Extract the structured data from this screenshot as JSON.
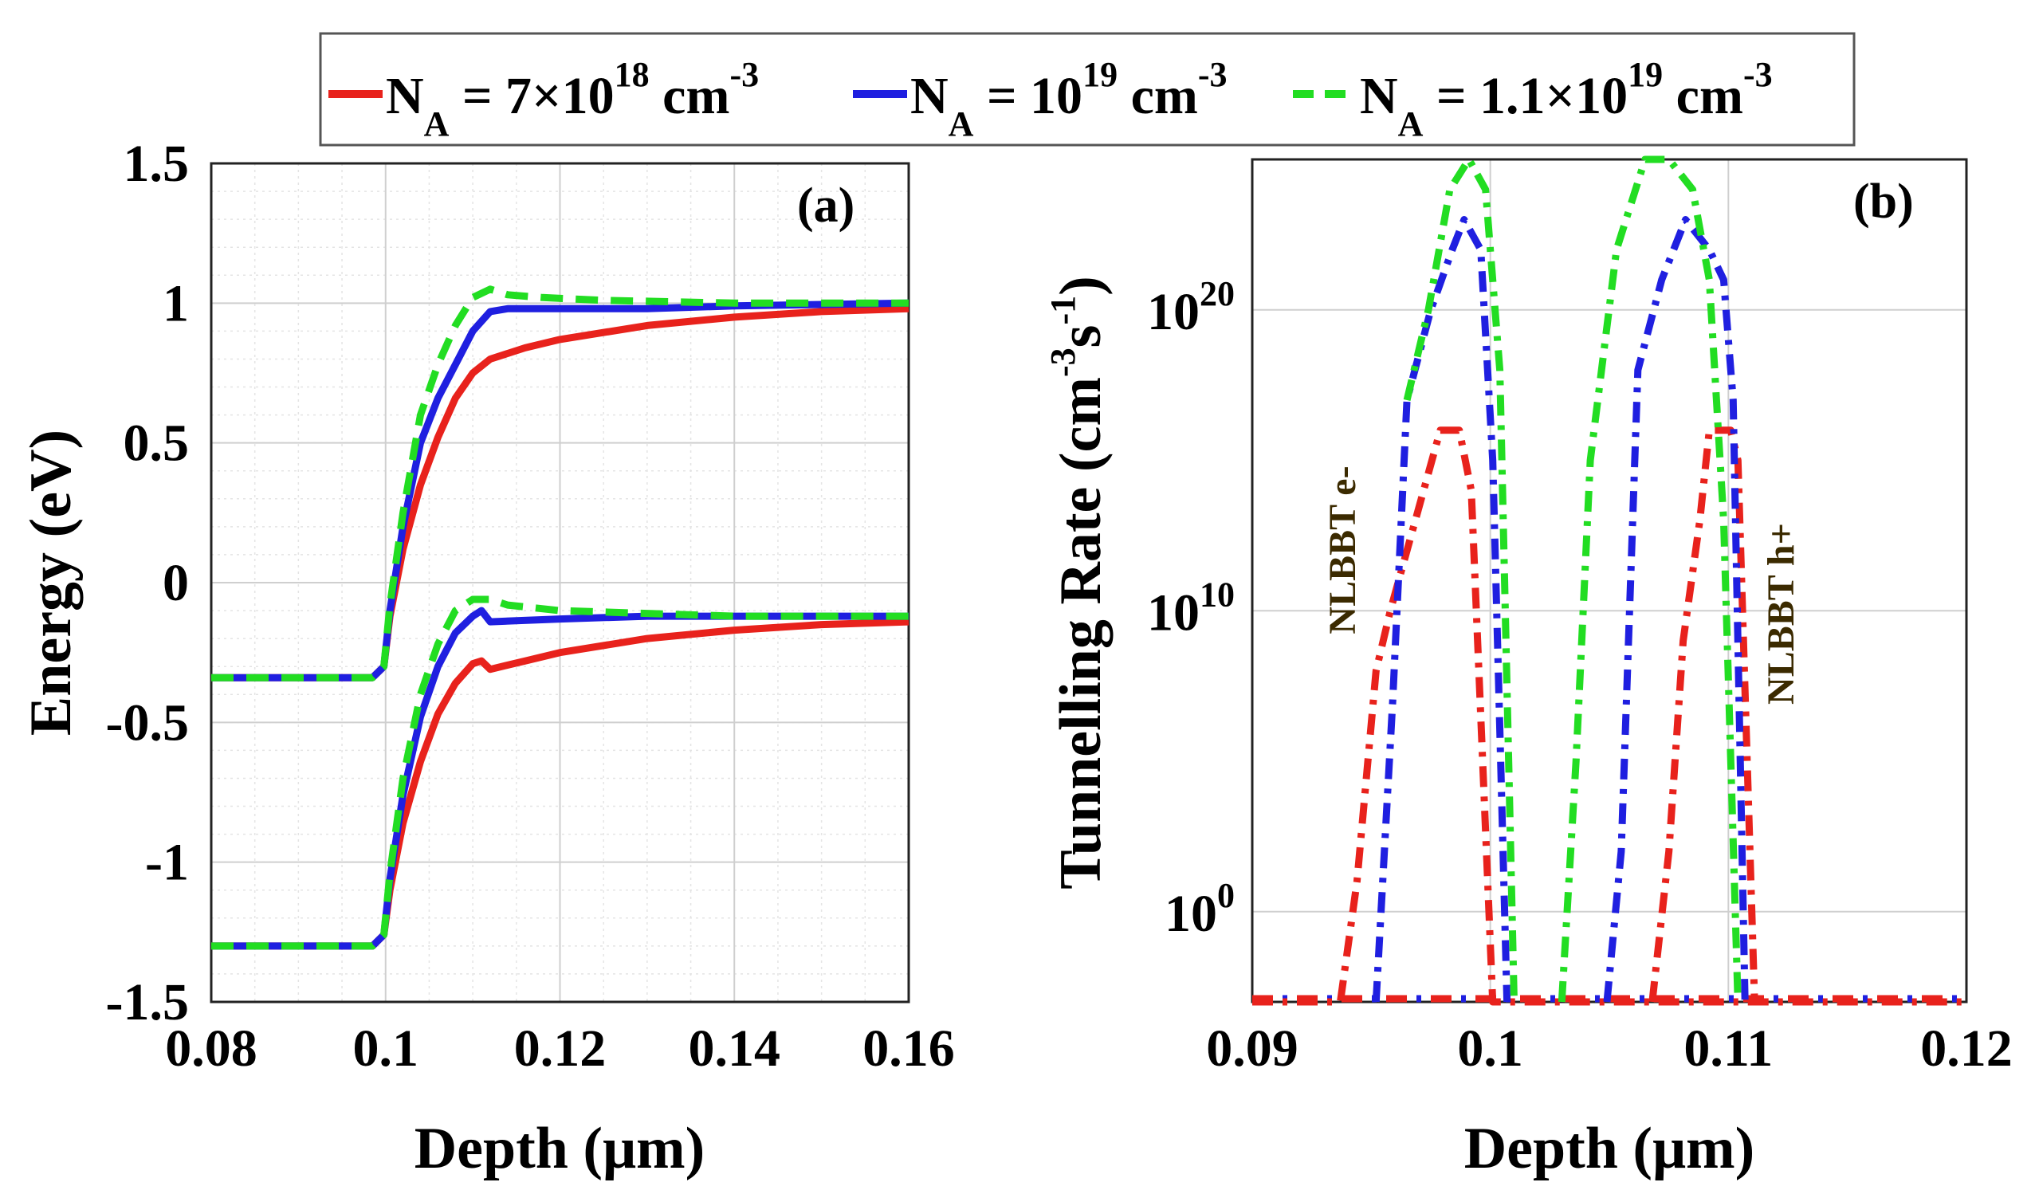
{
  "legend": {
    "entries": [
      {
        "name": "na-7e18",
        "color": "#e8221c",
        "dash": "solid",
        "prefix": "N",
        "sub": "A",
        "mid": " = 7×10",
        "exp": "18",
        "unit": " cm",
        "unit_exp": "-3"
      },
      {
        "name": "na-1e19",
        "color": "#1f1fe0",
        "dash": "solid",
        "prefix": "N",
        "sub": "A",
        "mid": " = 10",
        "exp": "19",
        "unit": " cm",
        "unit_exp": "-3"
      },
      {
        "name": "na-1.1e19",
        "color": "#22dd22",
        "dash": "dashed",
        "prefix": "N",
        "sub": "A",
        "mid": " = 1.1×10",
        "exp": "19",
        "unit": " cm",
        "unit_exp": "-3"
      }
    ]
  },
  "chart_data": [
    {
      "type": "line",
      "panel": "(a)",
      "xlabel": "Depth (μm)",
      "ylabel": "Energy (eV)",
      "xlim": [
        0.08,
        0.16
      ],
      "ylim": [
        -1.5,
        1.5
      ],
      "xticks": [
        0.08,
        0.1,
        0.12,
        0.14,
        0.16
      ],
      "xtick_labels": [
        "0.08",
        "0.1",
        "0.12",
        "0.14",
        "0.16"
      ],
      "yticks": [
        -1.5,
        -1,
        -0.5,
        0,
        0.5,
        1,
        1.5
      ],
      "ytick_labels": [
        "-1.5",
        "-1",
        "-0.5",
        "0",
        "0.5",
        "1",
        "1.5"
      ],
      "grid": true,
      "series": [
        {
          "name": "NA = 7e18 conduction band",
          "color": "#e8221c",
          "dash": "solid",
          "x": [
            0.08,
            0.0985,
            0.0998,
            0.1005,
            0.102,
            0.104,
            0.106,
            0.108,
            0.11,
            0.112,
            0.116,
            0.12,
            0.13,
            0.14,
            0.15,
            0.16
          ],
          "y": [
            -0.34,
            -0.34,
            -0.3,
            -0.12,
            0.12,
            0.35,
            0.52,
            0.66,
            0.75,
            0.8,
            0.84,
            0.87,
            0.92,
            0.95,
            0.97,
            0.98
          ]
        },
        {
          "name": "NA = 1e19 conduction band",
          "color": "#1f1fe0",
          "dash": "solid",
          "x": [
            0.08,
            0.0985,
            0.0998,
            0.1005,
            0.102,
            0.104,
            0.106,
            0.108,
            0.11,
            0.112,
            0.114,
            0.12,
            0.13,
            0.14,
            0.16
          ],
          "y": [
            -0.34,
            -0.34,
            -0.3,
            -0.1,
            0.2,
            0.5,
            0.66,
            0.78,
            0.9,
            0.97,
            0.98,
            0.98,
            0.98,
            0.99,
            1.0
          ]
        },
        {
          "name": "NA = 1.1e19 conduction band",
          "color": "#22dd22",
          "dash": "dashed",
          "x": [
            0.08,
            0.0985,
            0.0998,
            0.1005,
            0.102,
            0.104,
            0.106,
            0.108,
            0.11,
            0.112,
            0.114,
            0.118,
            0.125,
            0.14,
            0.16
          ],
          "y": [
            -0.34,
            -0.34,
            -0.3,
            -0.08,
            0.25,
            0.6,
            0.78,
            0.92,
            1.02,
            1.05,
            1.03,
            1.02,
            1.01,
            1.0,
            1.0
          ]
        },
        {
          "name": "NA = 7e18 valence band",
          "color": "#e8221c",
          "dash": "solid",
          "x": [
            0.08,
            0.0985,
            0.0998,
            0.1005,
            0.102,
            0.104,
            0.106,
            0.108,
            0.11,
            0.111,
            0.112,
            0.116,
            0.12,
            0.13,
            0.14,
            0.15,
            0.16
          ],
          "y": [
            -1.3,
            -1.3,
            -1.26,
            -1.1,
            -0.86,
            -0.64,
            -0.47,
            -0.36,
            -0.29,
            -0.28,
            -0.31,
            -0.28,
            -0.25,
            -0.2,
            -0.17,
            -0.15,
            -0.14
          ]
        },
        {
          "name": "NA = 1e19 valence band",
          "color": "#1f1fe0",
          "dash": "solid",
          "x": [
            0.08,
            0.0985,
            0.0998,
            0.1005,
            0.102,
            0.104,
            0.106,
            0.108,
            0.11,
            0.111,
            0.112,
            0.12,
            0.13,
            0.14,
            0.16
          ],
          "y": [
            -1.3,
            -1.3,
            -1.26,
            -1.06,
            -0.76,
            -0.48,
            -0.3,
            -0.18,
            -0.12,
            -0.1,
            -0.14,
            -0.13,
            -0.12,
            -0.12,
            -0.12
          ]
        },
        {
          "name": "NA = 1.1e19 valence band",
          "color": "#22dd22",
          "dash": "dashed",
          "x": [
            0.08,
            0.0985,
            0.0998,
            0.1005,
            0.102,
            0.104,
            0.106,
            0.108,
            0.11,
            0.112,
            0.114,
            0.12,
            0.13,
            0.14,
            0.16
          ],
          "y": [
            -1.3,
            -1.3,
            -1.26,
            -1.04,
            -0.7,
            -0.4,
            -0.22,
            -0.1,
            -0.06,
            -0.06,
            -0.08,
            -0.1,
            -0.11,
            -0.12,
            -0.12
          ]
        }
      ]
    },
    {
      "type": "line",
      "panel": "(b)",
      "yscale": "log",
      "xlabel": "Depth (μm)",
      "ylabel": "Tunnelling Rate (cm-3 s-1)",
      "ylabel_parts": {
        "text": "Tunnelling Rate (cm",
        "exp1": "-3",
        "mid": "s",
        "exp2": "-1",
        "end": ")"
      },
      "xlim": [
        0.09,
        0.12
      ],
      "ylim_log10": [
        -3,
        25
      ],
      "xticks": [
        0.09,
        0.1,
        0.11,
        0.12
      ],
      "xtick_labels": [
        "0.09",
        "0.1",
        "0.11",
        "0.12"
      ],
      "yticks_log10": [
        0,
        10,
        20
      ],
      "ytick_bases": [
        "10",
        "10",
        "10"
      ],
      "ytick_exps": [
        "0",
        "10",
        "20"
      ],
      "grid": true,
      "annotations": [
        "NLBBT e-",
        "NLBBT h+"
      ],
      "series": [
        {
          "name": "NA = 7e18 e-",
          "color": "#e8221c",
          "dash": "dashdot",
          "x": [
            0.09,
            0.0937,
            0.0944,
            0.0952,
            0.0958,
            0.0965,
            0.0972,
            0.0979,
            0.0987,
            0.0992,
            0.1001,
            0.12
          ],
          "y_log10": [
            -3,
            -3,
            1,
            8,
            10,
            12,
            14,
            16,
            16,
            14,
            -3,
            -3
          ]
        },
        {
          "name": "NA = 7e18 h+",
          "color": "#e8221c",
          "dash": "dashdot",
          "x": [
            0.1068,
            0.1075,
            0.1081,
            0.1088,
            0.1092,
            0.1098,
            0.1101,
            0.1104,
            0.1111
          ],
          "y_log10": [
            -3,
            2,
            9,
            13,
            16,
            16,
            16,
            15,
            -3
          ]
        },
        {
          "name": "NA = 1e19 e-",
          "color": "#1f1fe0",
          "dash": "dashdot",
          "x": [
            0.0952,
            0.0959,
            0.0965,
            0.0975,
            0.0984,
            0.0989,
            0.0996,
            0.1001,
            0.1007
          ],
          "y_log10": [
            -3,
            7,
            17,
            20,
            22,
            23,
            22,
            15,
            -3
          ]
        },
        {
          "name": "NA = 1e19 h+",
          "color": "#1f1fe0",
          "dash": "dashdot",
          "x": [
            0.1049,
            0.1055,
            0.1062,
            0.1072,
            0.1082,
            0.1092,
            0.1098,
            0.1102,
            0.1107
          ],
          "y_log10": [
            -3,
            2,
            18,
            21,
            23,
            22,
            21,
            17,
            -3
          ]
        },
        {
          "name": "NA = 1.1e19 e-",
          "color": "#22dd22",
          "dash": "dashdot",
          "x": [
            0.0965,
            0.0974,
            0.0983,
            0.0991,
            0.0998,
            0.1004,
            0.101
          ],
          "y_log10": [
            17,
            20,
            24,
            25,
            24,
            18,
            -3
          ]
        },
        {
          "name": "NA = 1.1e19 h+",
          "color": "#22dd22",
          "dash": "dashdot",
          "x": [
            0.103,
            0.1036,
            0.1042,
            0.1053,
            0.1065,
            0.1075,
            0.1085,
            0.1092,
            0.1098,
            0.1104
          ],
          "y_log10": [
            -3,
            5,
            15,
            22,
            25,
            25,
            24,
            21,
            13,
            -3
          ]
        }
      ]
    }
  ]
}
